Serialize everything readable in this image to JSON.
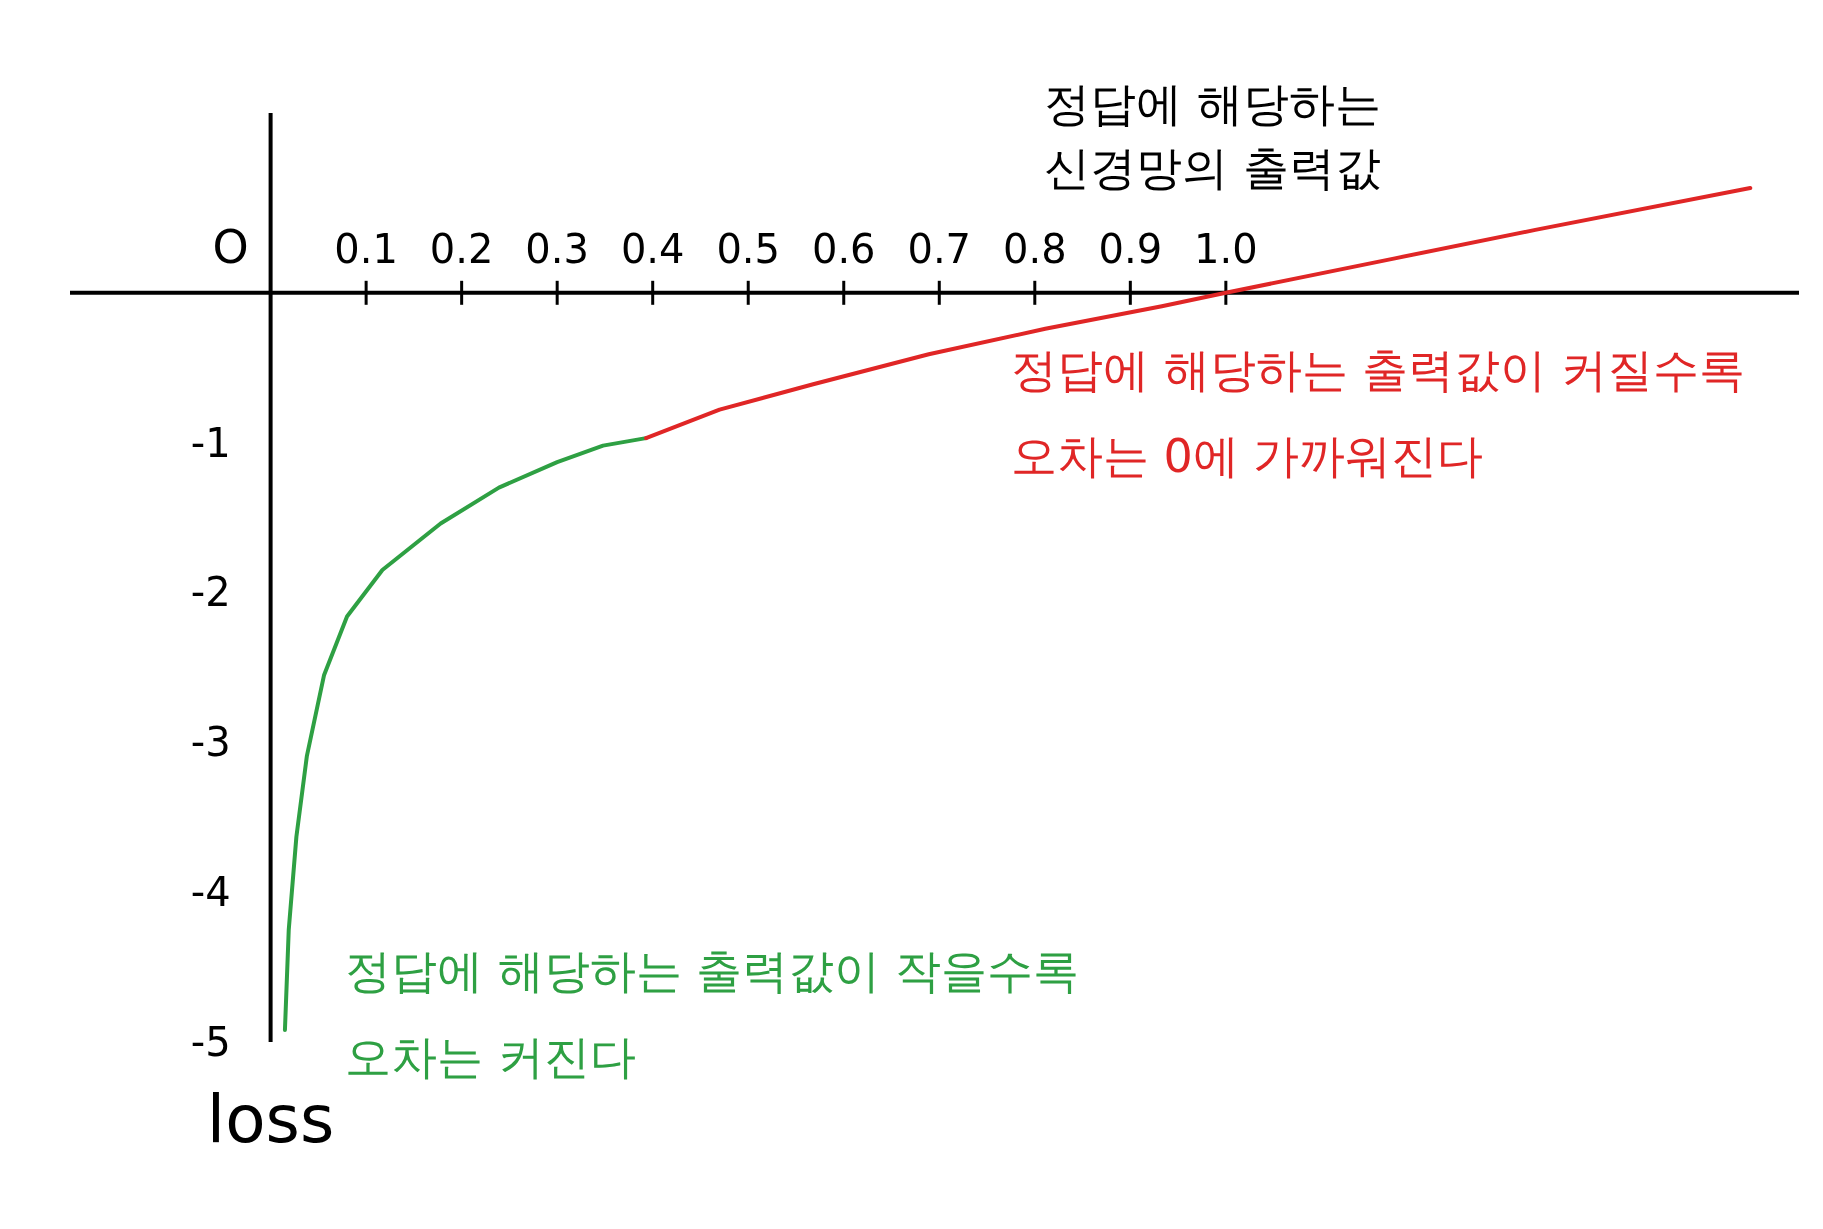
{
  "chart_data": {
    "type": "line",
    "xlabel": "정답에 해당하는\n신경망의 출력값",
    "xlim": [
      -0.21,
      1.6
    ],
    "ylim": [
      -5,
      1.2
    ],
    "xticks": [
      0.1,
      0.2,
      0.3,
      0.4,
      0.5,
      0.6,
      0.7,
      0.8,
      0.9,
      {
        "value": 1,
        "label": "1.0"
      }
    ],
    "yticks": [
      -1,
      -2,
      -3,
      -4,
      -5
    ],
    "grid": false,
    "marker": "none",
    "line_style": "solid",
    "series": [
      {
        "color": "#2ea043",
        "x": [
          0.015,
          0.019,
          0.027,
          0.038,
          0.056,
          0.08,
          0.117,
          0.178,
          0.239,
          0.3,
          0.348,
          0.393
        ],
        "values": [
          -4.92,
          -4.25,
          -3.63,
          -3.09,
          -2.55,
          -2.16,
          -1.85,
          -1.54,
          -1.3,
          -1.13,
          -1.02,
          -0.97
        ]
      },
      {
        "color": "#e02626",
        "x": [
          0.393,
          0.47,
          0.568,
          0.689,
          0.811,
          0.933,
          1.0,
          1.177,
          1.324,
          1.549
        ],
        "values": [
          -0.97,
          -0.78,
          -0.61,
          -0.41,
          -0.24,
          -0.09,
          0,
          0.23,
          0.42,
          0.7
        ]
      }
    ],
    "annotations": [
      "O",
      "loss",
      "정답에 해당하는 출력값이 작을수록\n오차는 커진다",
      "정답에 해당하는 출력값이 커질수록\n오차는 0에 가까워진다"
    ]
  }
}
